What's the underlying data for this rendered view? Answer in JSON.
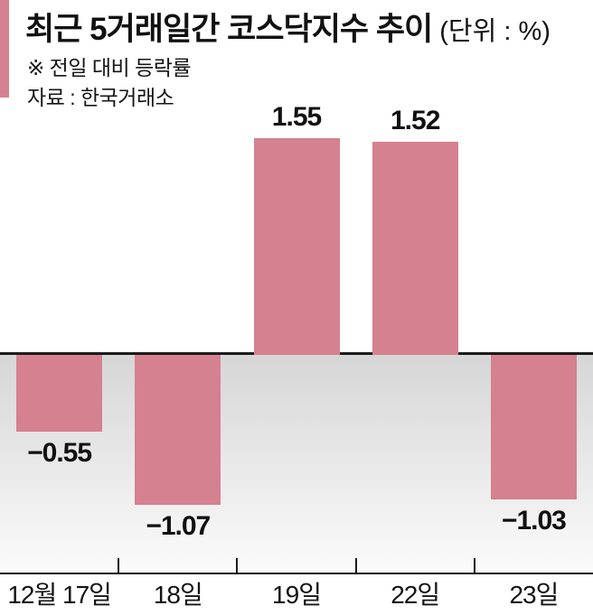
{
  "header": {
    "title": "최근 5거래일간 코스닥지수 추이",
    "unit_label": "(단위 : %)",
    "note": "※ 전일 대비 등락률",
    "source": "자료 : 한국거래소"
  },
  "chart_data": {
    "type": "bar",
    "title": "최근 5거래일간 코스닥지수 추이",
    "unit": "%",
    "note": "전일 대비 등락률",
    "source": "한국거래소",
    "categories": [
      "12월 17일",
      "18일",
      "19일",
      "22일",
      "23일"
    ],
    "values": [
      -0.55,
      -1.07,
      1.55,
      1.52,
      -1.03
    ],
    "value_labels": [
      "−0.55",
      "−1.07",
      "1.55",
      "1.52",
      "−1.03"
    ],
    "baseline": 0,
    "ylim": [
      -1.6,
      1.75
    ],
    "grid": false,
    "legend": false,
    "negative_zone_shaded": true
  },
  "colors": {
    "bar": "#d5818f",
    "accent_bar": "#d5818f",
    "axis": "#1b1b1b",
    "text": "#111111",
    "negative_zone_top": "#d6d6d6",
    "negative_zone_bottom": "#fbfbfb"
  }
}
